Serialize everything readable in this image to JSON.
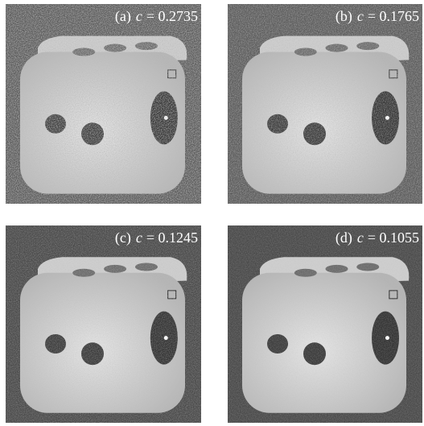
{
  "panels": [
    {
      "tag": "(a)",
      "symbol": "c",
      "equation": "= 0.2735"
    },
    {
      "tag": "(b)",
      "symbol": "c",
      "equation": "= 0.1765"
    },
    {
      "tag": "(c)",
      "symbol": "c",
      "equation": "= 0.1245"
    },
    {
      "tag": "(d)",
      "symbol": "c",
      "equation": "= 0.1055"
    }
  ]
}
